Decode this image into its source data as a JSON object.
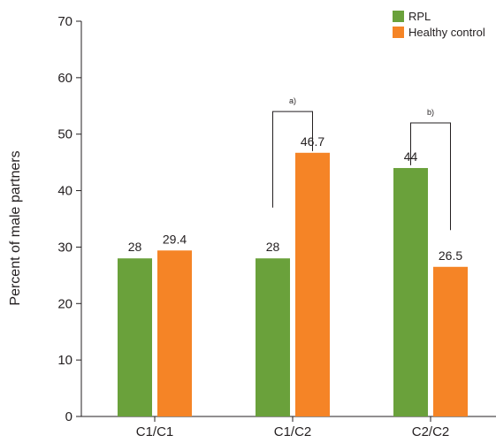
{
  "chart_data": {
    "type": "bar",
    "ylabel": "Percent of male partners",
    "ylim": [
      0,
      70
    ],
    "yticks": [
      0,
      10,
      20,
      30,
      40,
      50,
      60,
      70
    ],
    "categories": [
      "C1/C1",
      "C1/C2",
      "C2/C2"
    ],
    "legend_position": "top-right",
    "series": [
      {
        "name": "RPL",
        "color": "#6aa13b",
        "values": [
          28,
          28,
          44
        ],
        "labels": [
          "28",
          "28",
          "44"
        ]
      },
      {
        "name": "Healthy control",
        "color": "#f58426",
        "values": [
          29.4,
          46.7,
          26.5
        ],
        "labels": [
          "29.4",
          "46.7",
          "26.5"
        ]
      }
    ],
    "annotations": [
      {
        "label": "a)",
        "category_index": 1,
        "left_top_value": 37,
        "right_top_value": 47,
        "bracket_value": 54
      },
      {
        "label": "b)",
        "category_index": 2,
        "left_top_value": 44.5,
        "right_top_value": 33,
        "bracket_value": 52
      }
    ]
  }
}
